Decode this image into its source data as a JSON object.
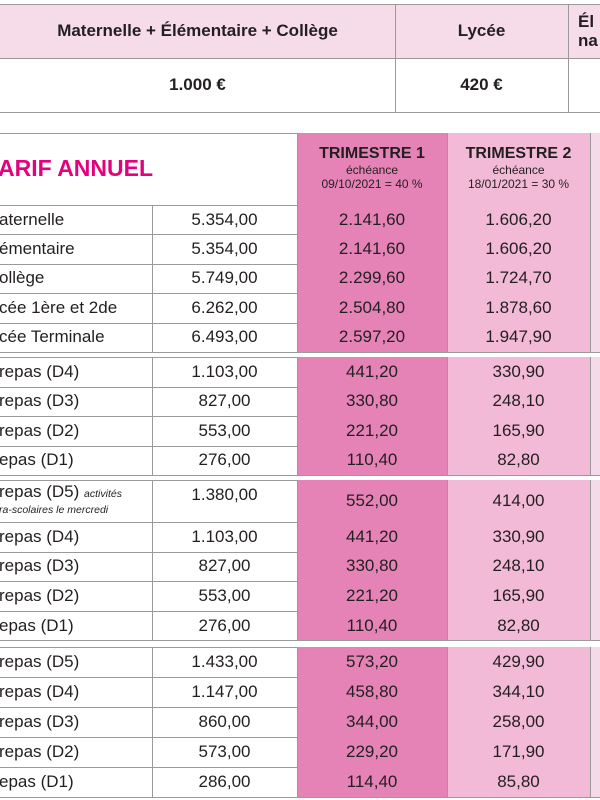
{
  "top_table": {
    "headers": [
      "Maternelle + Élémentaire + Collège",
      "Lycée",
      [
        "Él",
        "na"
      ]
    ],
    "row": [
      "1.000 €",
      "420 €"
    ]
  },
  "tariff_table": {
    "title": "ARIF ANNUEL",
    "columns": [
      {
        "title": "TRIMESTRE 1",
        "subtitle": "échéance",
        "due": "09/10/2021 = 40 %"
      },
      {
        "title": "TRIMESTRE 2",
        "subtitle": "échéance",
        "due": "18/01/2021 = 30 %"
      }
    ],
    "groups": [
      [
        [
          "aternelle",
          "5.354,00",
          "2.141,60",
          "1.606,20"
        ],
        [
          "émentaire",
          "5.354,00",
          "2.141,60",
          "1.606,20"
        ],
        [
          "ollège",
          "5.749,00",
          "2.299,60",
          "1.724,70"
        ],
        [
          "cée 1ère et 2de",
          "6.262,00",
          "2.504,80",
          "1.878,60"
        ],
        [
          "cée Terminale",
          "6.493,00",
          "2.597,20",
          "1.947,90"
        ]
      ],
      [
        [
          "repas (D4)",
          "1.103,00",
          "441,20",
          "330,90"
        ],
        [
          "repas (D3)",
          "827,00",
          "330,80",
          "248,10"
        ],
        [
          "repas (D2)",
          "553,00",
          "221,20",
          "165,90"
        ],
        [
          "epas (D1)",
          "276,00",
          "110,40",
          "82,80"
        ]
      ],
      [
        [
          "repas (D5)",
          "1.380,00",
          "552,00",
          "414,00",
          "activités",
          "ra-scolaires le mercredi"
        ],
        [
          "repas (D4)",
          "1.103,00",
          "441,20",
          "330,90"
        ],
        [
          "repas (D3)",
          "827,00",
          "330,80",
          "248,10"
        ],
        [
          "repas (D2)",
          "553,00",
          "221,20",
          "165,90"
        ],
        [
          "epas (D1)",
          "276,00",
          "110,40",
          "82,80"
        ]
      ],
      [
        [
          "repas (D5)",
          "1.433,00",
          "573,20",
          "429,90"
        ],
        [
          "repas (D4)",
          "1.147,00",
          "458,80",
          "344,10"
        ],
        [
          "repas (D3)",
          "860,00",
          "344,00",
          "258,00"
        ],
        [
          "repas (D2)",
          "573,00",
          "229,20",
          "171,90"
        ],
        [
          "epas (D1)",
          "286,00",
          "114,40",
          "85,80"
        ]
      ]
    ]
  }
}
